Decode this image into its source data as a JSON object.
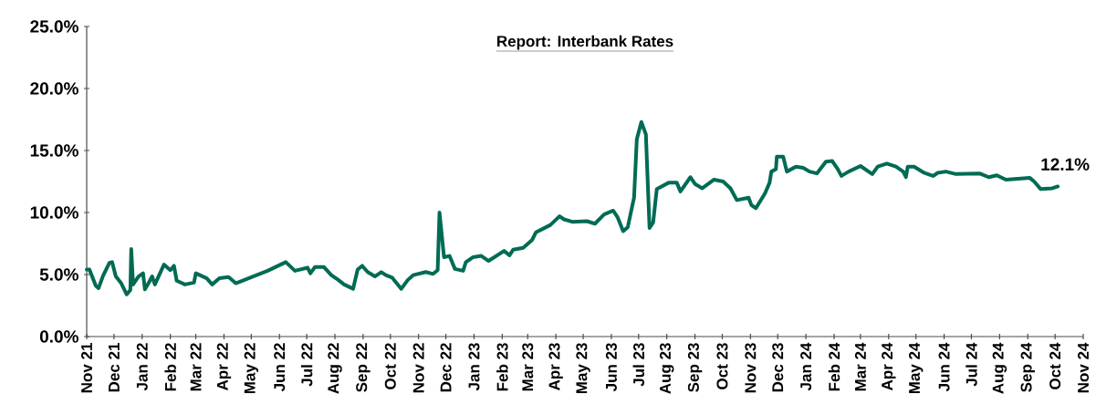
{
  "chart_data": {
    "type": "line",
    "title": "Report: Interbank Rates",
    "x": [
      "2021-11-01",
      "2021-11-04",
      "2021-11-11",
      "2021-11-14",
      "2021-11-19",
      "2021-11-26",
      "2021-11-29",
      "2021-12-03",
      "2021-12-09",
      "2021-12-15",
      "2021-12-19",
      "2021-12-20",
      "2021-12-22",
      "2021-12-28",
      "2022-01-02",
      "2022-01-04",
      "2022-01-08",
      "2022-01-12",
      "2022-01-15",
      "2022-01-25",
      "2022-02-01",
      "2022-02-05",
      "2022-02-08",
      "2022-02-17",
      "2022-02-27",
      "2022-03-01",
      "2022-03-13",
      "2022-03-19",
      "2022-03-27",
      "2022-04-06",
      "2022-04-14",
      "2022-04-28",
      "2022-05-19",
      "2022-06-08",
      "2022-06-18",
      "2022-07-02",
      "2022-07-05",
      "2022-07-10",
      "2022-07-20",
      "2022-07-28",
      "2022-08-04",
      "2022-08-11",
      "2022-08-21",
      "2022-08-26",
      "2022-08-31",
      "2022-09-06",
      "2022-09-14",
      "2022-09-21",
      "2022-09-26",
      "2022-10-03",
      "2022-10-13",
      "2022-10-20",
      "2022-10-26",
      "2022-11-09",
      "2022-11-17",
      "2022-11-22",
      "2022-11-24",
      "2022-11-29",
      "2022-12-05",
      "2022-12-11",
      "2022-12-20",
      "2022-12-23",
      "2022-12-31",
      "2023-01-09",
      "2023-01-17",
      "2023-02-03",
      "2023-02-09",
      "2023-02-13",
      "2023-02-24",
      "2023-03-06",
      "2023-03-10",
      "2023-03-26",
      "2023-04-05",
      "2023-04-10",
      "2023-04-19",
      "2023-05-05",
      "2023-05-14",
      "2023-05-24",
      "2023-06-03",
      "2023-06-08",
      "2023-06-14",
      "2023-06-19",
      "2023-06-26",
      "2023-06-29",
      "2023-07-04",
      "2023-07-09",
      "2023-07-13",
      "2023-07-17",
      "2023-07-21",
      "2023-08-03",
      "2023-08-12",
      "2023-08-16",
      "2023-08-27",
      "2023-09-01",
      "2023-09-09",
      "2023-09-22",
      "2023-10-02",
      "2023-10-10",
      "2023-10-17",
      "2023-10-30",
      "2023-11-02",
      "2023-11-07",
      "2023-11-17",
      "2023-11-22",
      "2023-11-24",
      "2023-11-29",
      "2023-11-30",
      "2023-12-07",
      "2023-12-11",
      "2023-12-21",
      "2023-12-29",
      "2024-01-05",
      "2024-01-13",
      "2024-01-23",
      "2024-01-30",
      "2024-02-05",
      "2024-02-09",
      "2024-02-17",
      "2024-03-01",
      "2024-03-14",
      "2024-03-20",
      "2024-03-30",
      "2024-04-09",
      "2024-04-17",
      "2024-04-20",
      "2024-04-22",
      "2024-04-29",
      "2024-05-10",
      "2024-05-20",
      "2024-05-25",
      "2024-06-03",
      "2024-06-14",
      "2024-07-10",
      "2024-07-20",
      "2024-07-29",
      "2024-08-08",
      "2024-09-03",
      "2024-09-08",
      "2024-09-15",
      "2024-09-28",
      "2024-10-04"
    ],
    "series": [
      {
        "color": "#006b54",
        "values": [
          5.4,
          5.4,
          4.1,
          3.9,
          4.9,
          5.95,
          6.0,
          4.85,
          4.3,
          3.4,
          3.75,
          7.05,
          4.2,
          4.85,
          5.1,
          3.8,
          4.3,
          4.85,
          4.2,
          5.8,
          5.35,
          5.7,
          4.5,
          4.2,
          4.35,
          5.1,
          4.7,
          4.2,
          4.7,
          4.8,
          4.3,
          4.7,
          5.3,
          6.0,
          5.3,
          5.55,
          5.1,
          5.6,
          5.6,
          4.95,
          4.6,
          4.2,
          3.85,
          5.4,
          5.7,
          5.2,
          4.85,
          5.2,
          4.95,
          4.75,
          3.85,
          4.55,
          4.95,
          5.2,
          5.05,
          5.35,
          10.0,
          6.4,
          6.5,
          5.45,
          5.3,
          6.0,
          6.4,
          6.5,
          6.1,
          6.9,
          6.55,
          7.0,
          7.15,
          7.8,
          8.4,
          9.0,
          9.7,
          9.45,
          9.25,
          9.3,
          9.1,
          9.85,
          10.15,
          9.6,
          8.5,
          8.8,
          11.2,
          15.9,
          17.3,
          16.3,
          8.75,
          9.2,
          11.9,
          12.4,
          12.4,
          11.7,
          12.85,
          12.3,
          11.95,
          12.65,
          12.5,
          11.95,
          11.0,
          11.2,
          10.6,
          10.35,
          11.55,
          12.4,
          13.3,
          13.5,
          14.5,
          14.5,
          13.3,
          13.7,
          13.6,
          13.3,
          13.15,
          14.1,
          14.15,
          13.5,
          12.95,
          13.3,
          13.75,
          13.1,
          13.7,
          13.95,
          13.7,
          13.3,
          12.85,
          13.7,
          13.7,
          13.2,
          12.95,
          13.2,
          13.3,
          13.1,
          13.15,
          12.85,
          13.0,
          12.65,
          12.8,
          12.5,
          11.9,
          11.95,
          12.1
        ]
      }
    ],
    "xlim": [
      "2021-11-01",
      "2024-11-01"
    ],
    "xticks": [
      {
        "value": "2021-11-01",
        "label": "Nov 21"
      },
      {
        "value": "2021-12-01",
        "label": "Dec 21"
      },
      {
        "value": "2022-01-01",
        "label": "Jan 22"
      },
      {
        "value": "2022-02-01",
        "label": "Feb 22"
      },
      {
        "value": "2022-03-01",
        "label": "Mar 22"
      },
      {
        "value": "2022-04-01",
        "label": "Apr 22"
      },
      {
        "value": "2022-05-01",
        "label": "May 22"
      },
      {
        "value": "2022-06-01",
        "label": "Jun 22"
      },
      {
        "value": "2022-07-01",
        "label": "Jul 22"
      },
      {
        "value": "2022-08-01",
        "label": "Aug 22"
      },
      {
        "value": "2022-09-01",
        "label": "Sep 22"
      },
      {
        "value": "2022-10-01",
        "label": "Oct 22"
      },
      {
        "value": "2022-11-01",
        "label": "Nov 22"
      },
      {
        "value": "2022-12-01",
        "label": "Dec 22"
      },
      {
        "value": "2023-01-01",
        "label": "Jan 23"
      },
      {
        "value": "2023-02-01",
        "label": "Feb 23"
      },
      {
        "value": "2023-03-01",
        "label": "Mar 23"
      },
      {
        "value": "2023-04-01",
        "label": "Apr 23"
      },
      {
        "value": "2023-05-01",
        "label": "May 23"
      },
      {
        "value": "2023-06-01",
        "label": "Jun 23"
      },
      {
        "value": "2023-07-01",
        "label": "Jul 23"
      },
      {
        "value": "2023-08-01",
        "label": "Aug 23"
      },
      {
        "value": "2023-09-01",
        "label": "Sep 23"
      },
      {
        "value": "2023-10-01",
        "label": "Oct 23"
      },
      {
        "value": "2023-11-01",
        "label": "Nov 23"
      },
      {
        "value": "2023-12-01",
        "label": "Dec 23"
      },
      {
        "value": "2024-01-01",
        "label": "Jan 24"
      },
      {
        "value": "2024-02-01",
        "label": "Feb 24"
      },
      {
        "value": "2024-03-01",
        "label": "Mar 24"
      },
      {
        "value": "2024-04-01",
        "label": "Apr 24"
      },
      {
        "value": "2024-05-01",
        "label": "May 24"
      },
      {
        "value": "2024-06-01",
        "label": "Jun 24"
      },
      {
        "value": "2024-07-01",
        "label": "Jul 24"
      },
      {
        "value": "2024-08-01",
        "label": "Aug 24"
      },
      {
        "value": "2024-09-01",
        "label": "Sep 24"
      },
      {
        "value": "2024-10-01",
        "label": "Oct 24"
      },
      {
        "value": "2024-11-01",
        "label": "Nov 24"
      }
    ],
    "ylim": [
      0,
      25
    ],
    "yticks": [
      {
        "value": 0,
        "label": "0.0%"
      },
      {
        "value": 5,
        "label": "5.0%"
      },
      {
        "value": 10,
        "label": "10.0%"
      },
      {
        "value": 15,
        "label": "15.0%"
      },
      {
        "value": 20,
        "label": "20.0%"
      },
      {
        "value": 25,
        "label": "25.0%"
      }
    ],
    "annotations": [
      {
        "text": "12.1%",
        "x": "2024-10-04",
        "y": 12.1
      }
    ],
    "grid": false,
    "marker": "none",
    "line_style": "solid"
  }
}
